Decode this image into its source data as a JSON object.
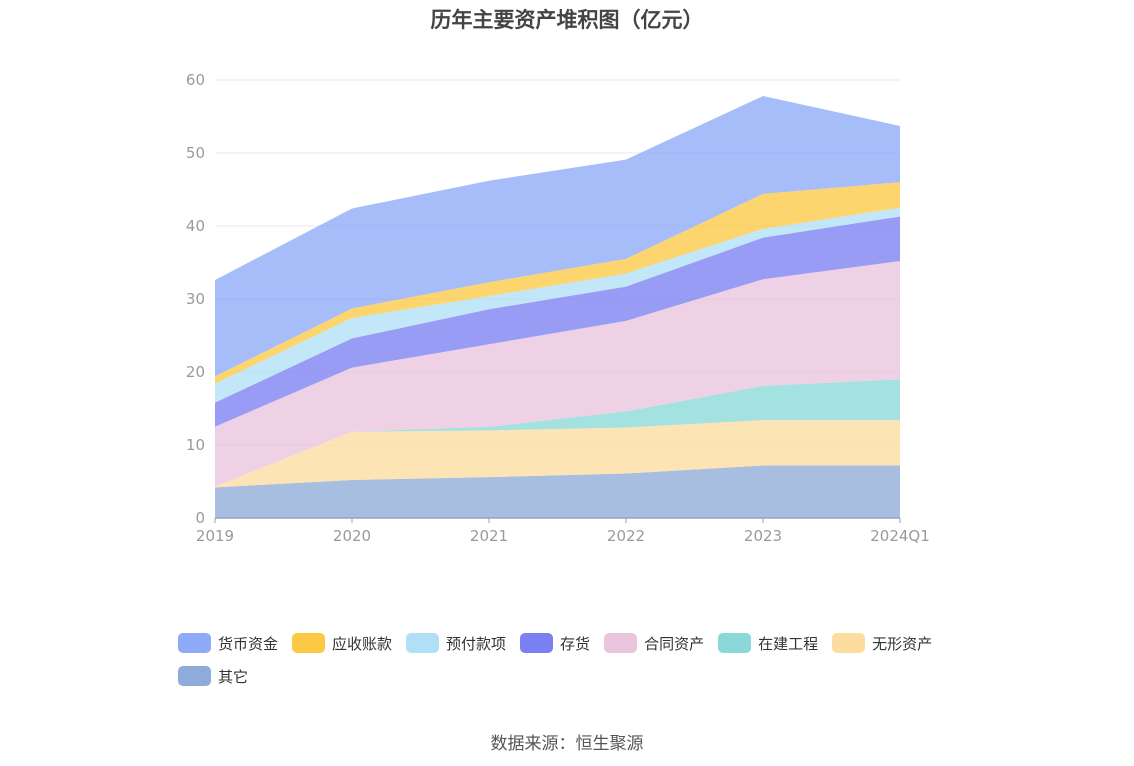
{
  "chart_data": {
    "type": "area",
    "stacked": true,
    "title": "历年主要资产堆积图（亿元）",
    "x": [
      "2019",
      "2020",
      "2021",
      "2022",
      "2023",
      "2024Q1"
    ],
    "ylim": [
      0,
      60
    ],
    "yticks": [
      0,
      10,
      20,
      30,
      40,
      50,
      60
    ],
    "grid": true,
    "legend_position": "bottom",
    "series": [
      {
        "name": "其它",
        "color": "#8eacd9",
        "values": [
          4.2,
          5.2,
          5.6,
          6.1,
          7.2,
          7.2
        ]
      },
      {
        "name": "无形资产",
        "color": "#fddca0",
        "values": [
          0.1,
          6.6,
          6.4,
          6.3,
          6.2,
          6.2
        ]
      },
      {
        "name": "在建工程",
        "color": "#8ad8d8",
        "values": [
          0.0,
          0.0,
          0.5,
          2.2,
          4.7,
          5.6
        ]
      },
      {
        "name": "合同资产",
        "color": "#ebc4de",
        "values": [
          8.2,
          8.8,
          11.3,
          12.4,
          14.6,
          16.2
        ]
      },
      {
        "name": "存货",
        "color": "#7b80f2",
        "values": [
          3.3,
          4.0,
          4.8,
          4.7,
          5.7,
          6.1
        ]
      },
      {
        "name": "预付款项",
        "color": "#b1e0f6",
        "values": [
          2.6,
          2.8,
          1.8,
          1.8,
          1.2,
          1.2
        ]
      },
      {
        "name": "应收账款",
        "color": "#fdc945",
        "values": [
          1.0,
          1.3,
          1.9,
          2.0,
          4.8,
          3.5
        ]
      },
      {
        "name": "货币资金",
        "color": "#8eaaf9",
        "values": [
          13.2,
          13.7,
          13.9,
          13.6,
          13.4,
          7.7
        ]
      }
    ],
    "legend_order": [
      "货币资金",
      "应收账款",
      "预付款项",
      "存货",
      "合同资产",
      "在建工程",
      "无形资产",
      "其它"
    ]
  },
  "source_note": "数据来源：恒生聚源",
  "axis_color": "#9aa0b8",
  "grid_color": "#e8e8e8",
  "tick_text_color": "#9a9a9a"
}
